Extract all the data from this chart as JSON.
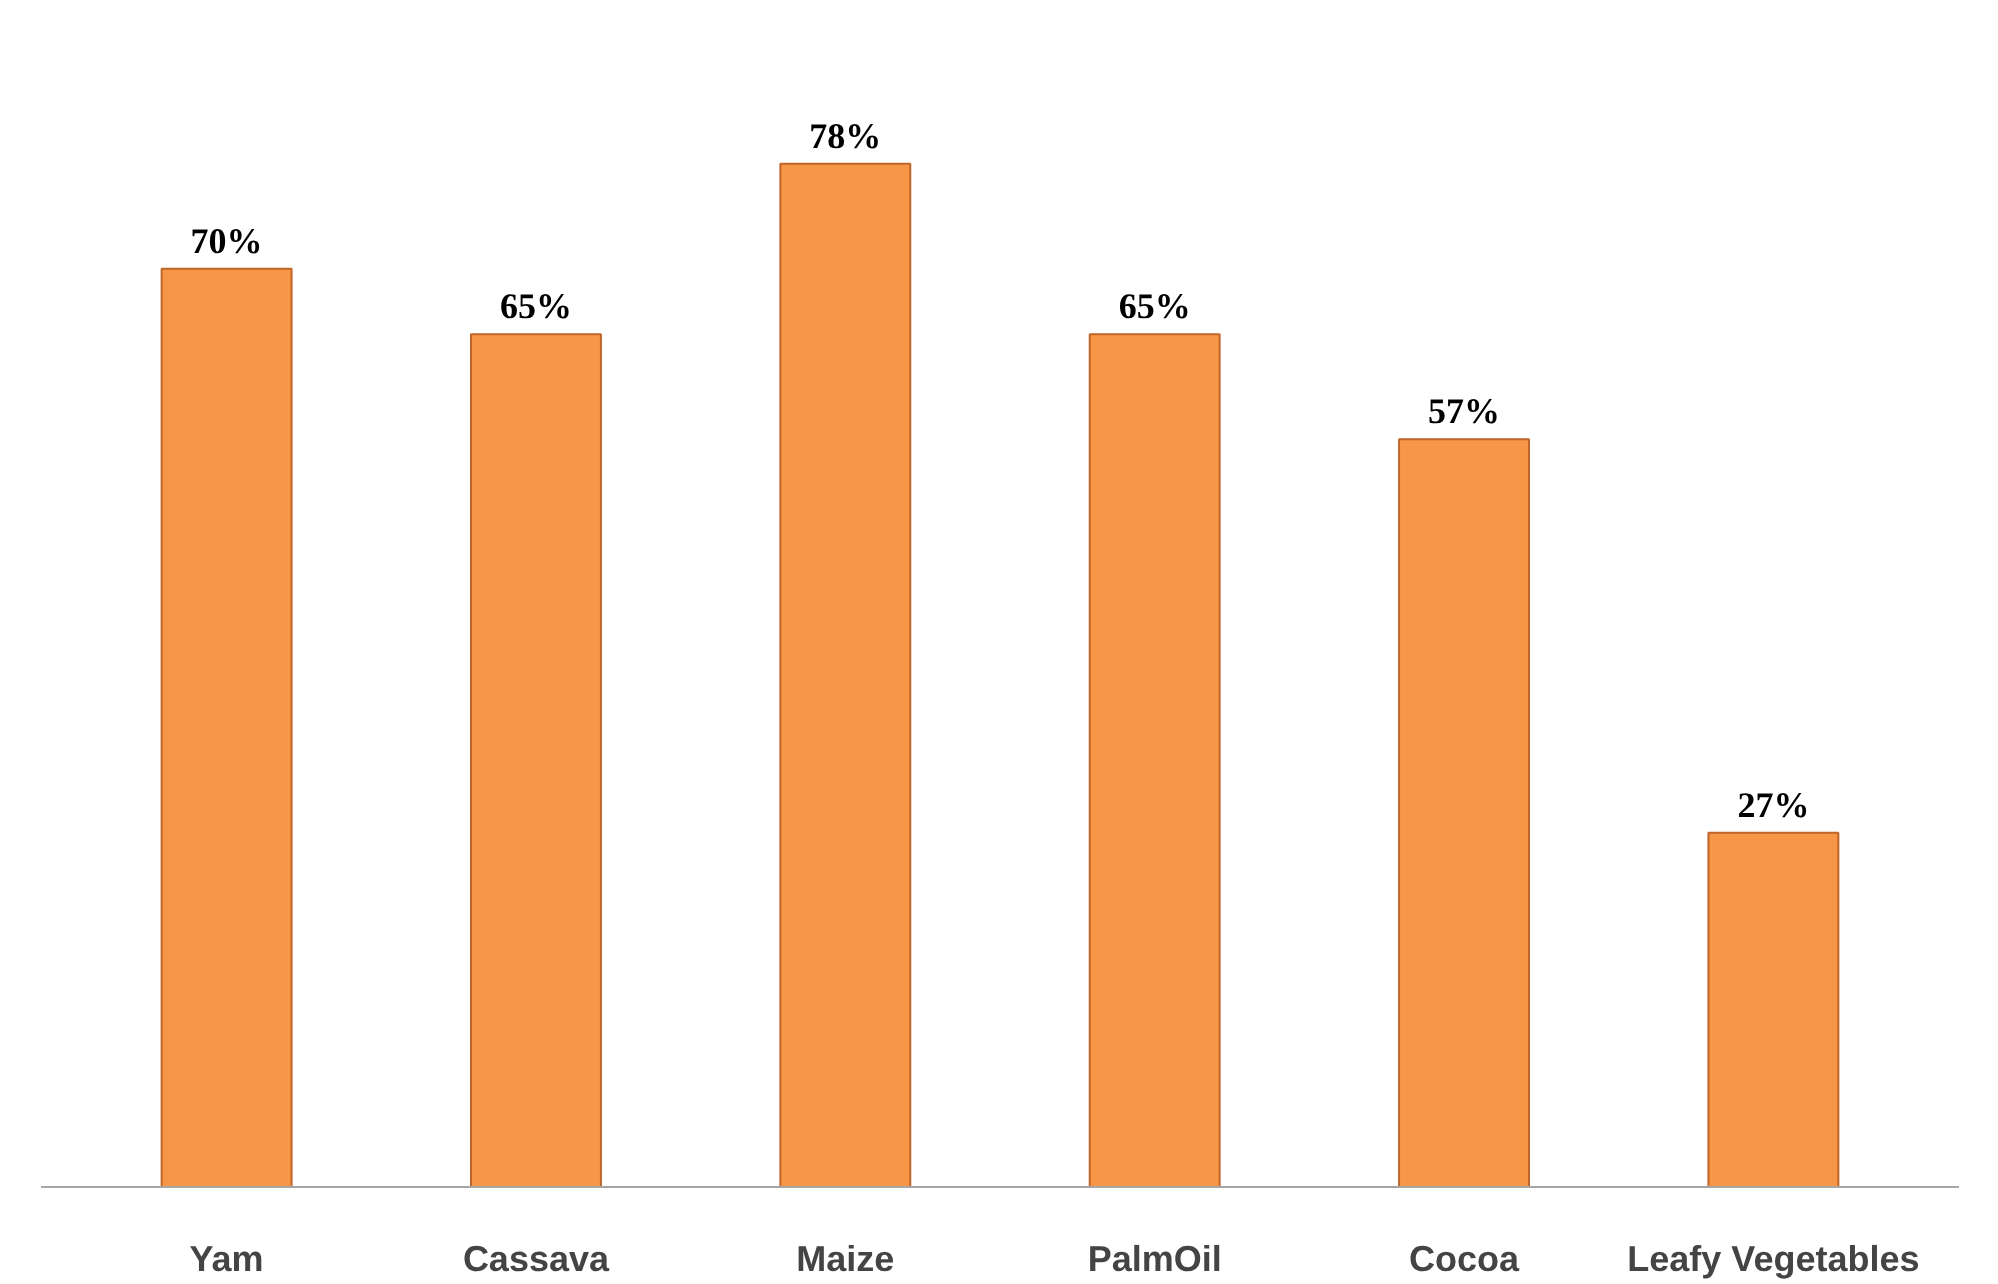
{
  "chart_data": {
    "type": "bar",
    "categories": [
      "Yam",
      "Cassava",
      "Maize",
      "PalmOil",
      "Cocoa",
      "Leafy Vegetables"
    ],
    "values": [
      70,
      65,
      78,
      65,
      57,
      27
    ],
    "value_labels": [
      "70%",
      "65%",
      "78%",
      "65%",
      "57%",
      "27%"
    ],
    "color": "#f79646"
  }
}
